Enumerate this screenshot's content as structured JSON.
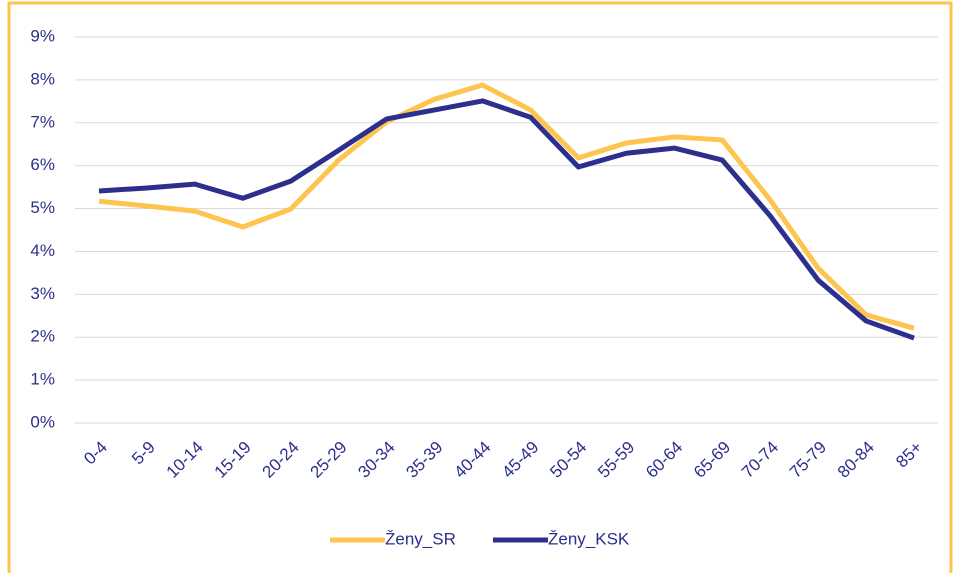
{
  "chart_data": {
    "type": "line",
    "categories": [
      "0-4",
      "5-9",
      "10-14",
      "15-19",
      "20-24",
      "25-29",
      "30-34",
      "35-39",
      "40-44",
      "45-49",
      "50-54",
      "55-59",
      "60-64",
      "65-69",
      "70-74",
      "75-79",
      "80-84",
      "85+"
    ],
    "series": [
      {
        "name": "Ženy_SR",
        "color": "#fdc54f",
        "values": [
          5.17,
          5.06,
          4.94,
          4.57,
          4.99,
          6.13,
          7.02,
          7.55,
          7.88,
          7.3,
          6.18,
          6.53,
          6.67,
          6.6,
          5.2,
          3.61,
          2.52,
          2.21
        ]
      },
      {
        "name": "Ženy_KSK",
        "color": "#2c2f8c",
        "values": [
          5.41,
          5.48,
          5.57,
          5.24,
          5.64,
          6.36,
          7.09,
          7.3,
          7.51,
          7.13,
          5.97,
          6.29,
          6.41,
          6.13,
          4.83,
          3.33,
          2.38,
          1.98
        ]
      }
    ],
    "ylim": [
      0,
      9
    ],
    "yticks": [
      {
        "value": 0,
        "label": "0%"
      },
      {
        "value": 1,
        "label": "1%"
      },
      {
        "value": 2,
        "label": "2%"
      },
      {
        "value": 3,
        "label": "3%"
      },
      {
        "value": 4,
        "label": "4%"
      },
      {
        "value": 5,
        "label": "5%"
      },
      {
        "value": 6,
        "label": "6%"
      },
      {
        "value": 7,
        "label": "7%"
      },
      {
        "value": 8,
        "label": "8%"
      },
      {
        "value": 9,
        "label": "9%"
      }
    ],
    "grid": true,
    "legend": "bottom"
  }
}
